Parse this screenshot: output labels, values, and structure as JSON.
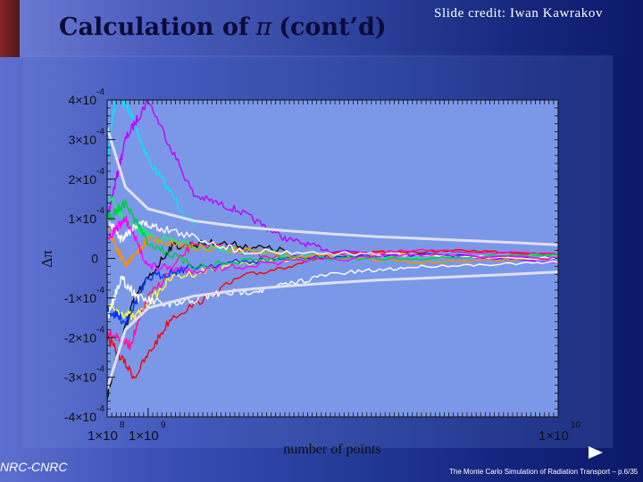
{
  "slide": {
    "title_prefix": "Calculation of",
    "title_symbol": "π",
    "title_suffix": "(cont’d)",
    "credit": "Slide credit: Iwan Kawrakov",
    "footer_left": "NRC-CNRC",
    "footer_right": "The Monte Carlo Simulation of Radiation Transport – p.6/35"
  },
  "colors": {
    "plot_background": "#7b98e8",
    "axis": "#101010",
    "envelope": "#e0e0f2",
    "title": "#0b0b3a"
  },
  "chart_data": {
    "type": "line",
    "xscale": "linear",
    "xlim": [
      100000000,
      10000000000
    ],
    "ylim": [
      -0.0004,
      0.0004
    ],
    "xlabel": "number of points",
    "ylabel": "Δπ",
    "x_ticks": [
      {
        "value": 100000000,
        "mantissa": "1×10",
        "exponent": "8"
      },
      {
        "value": 1000000000,
        "mantissa": "1×10",
        "exponent": "9"
      },
      {
        "value": 10000000000,
        "mantissa": "1×10",
        "exponent": "10"
      }
    ],
    "y_ticks": [
      {
        "value": 0.0004,
        "mantissa": "4×10",
        "exponent": "-4"
      },
      {
        "value": 0.0003,
        "mantissa": "3×10",
        "exponent": "-4"
      },
      {
        "value": 0.0002,
        "mantissa": "2×10",
        "exponent": "-4"
      },
      {
        "value": 0.0001,
        "mantissa": "1×10",
        "exponent": "-4"
      },
      {
        "value": 0,
        "mantissa": "0",
        "exponent": ""
      },
      {
        "value": -0.0001,
        "mantissa": "-1×10",
        "exponent": "-4"
      },
      {
        "value": -0.0002,
        "mantissa": "-2×10",
        "exponent": "-4"
      },
      {
        "value": -0.0003,
        "mantissa": "-3×10",
        "exponent": "-4"
      },
      {
        "value": -0.0004,
        "mantissa": "-4×10",
        "exponent": "-4"
      }
    ],
    "envelope": {
      "x": [
        100000000,
        500000000,
        1000000000,
        2000000000,
        3000000000,
        4000000000,
        5000000000,
        6000000000,
        7000000000,
        8000000000,
        9000000000,
        10000000000
      ],
      "upper": [
        0.00033,
        0.00018,
        0.000125,
        9.5e-05,
        8e-05,
        7e-05,
        6.2e-05,
        5.5e-05,
        5e-05,
        4.5e-05,
        4e-05,
        3.4e-05
      ],
      "lower": [
        -0.00033,
        -0.00018,
        -0.000125,
        -9.5e-05,
        -8e-05,
        -7e-05,
        -6.2e-05,
        -5.5e-05,
        -5e-05,
        -4.5e-05,
        -4e-05,
        -3.4e-05
      ]
    },
    "series": [
      {
        "color": "#00e5ff",
        "x": [
          100000000,
          300000000,
          600000000,
          1000000000,
          2000000000
        ],
        "values": [
          0.00025,
          0.00042,
          0.00037,
          0.00025,
          8e-05
        ]
      },
      {
        "color": "#c000ff",
        "x": [
          100000000,
          500000000,
          1000000000,
          2000000000,
          3000000000,
          4000000000,
          5000000000,
          7000000000,
          10000000000
        ],
        "values": [
          0.0001,
          0.0003,
          0.0004,
          0.00016,
          0.00012,
          5e-05,
          2e-05,
          1e-05,
          -1e-05
        ]
      },
      {
        "color": "#ff0000",
        "x": [
          100000000,
          700000000,
          1500000000,
          3000000000,
          5000000000,
          8000000000,
          10000000000
        ],
        "values": [
          -0.0002,
          -0.0003,
          -0.00015,
          -5e-05,
          1e-05,
          2e-05,
          1e-05
        ]
      },
      {
        "color": "#101010",
        "x": [
          100000000,
          300000000,
          700000000,
          1500000000,
          2500000000,
          4000000000
        ],
        "values": [
          -0.00035,
          -0.00025,
          -0.0001,
          3e-05,
          4e-05,
          2e-05
        ]
      },
      {
        "color": "#ffff33",
        "x": [
          100000000,
          700000000,
          1500000000,
          3000000000,
          6000000000,
          10000000000
        ],
        "values": [
          -0.00012,
          -0.00015,
          -5e-05,
          -1e-05,
          1e-05,
          0.0
        ]
      },
      {
        "color": "#ff1493",
        "x": [
          100000000,
          600000000,
          1000000000,
          2000000000,
          4000000000,
          7000000000,
          10000000000
        ],
        "values": [
          -0.00018,
          -0.00022,
          -0.0001,
          4e-05,
          0.0,
          2e-05,
          1e-05
        ]
      },
      {
        "color": "#00ff66",
        "x": [
          100000000,
          500000000,
          1000000000,
          2000000000,
          4000000000,
          7000000000,
          10000000000
        ],
        "values": [
          0.00017,
          9e-05,
          6e-05,
          3e-05,
          1e-05,
          0.0,
          1e-05
        ]
      },
      {
        "color": "#0030ff",
        "x": [
          100000000,
          500000000,
          1000000000,
          2000000000,
          4000000000,
          7000000000,
          10000000000
        ],
        "values": [
          -0.00013,
          -0.00016,
          -5e-05,
          -2e-05,
          0.0,
          1e-05,
          0.0
        ]
      },
      {
        "color": "#ff8c00",
        "x": [
          100000000,
          500000000,
          1000000000,
          2000000000,
          4000000000,
          7000000000,
          10000000000
        ],
        "values": [
          8e-05,
          -2e-05,
          5e-05,
          3e-05,
          1e-05,
          -1e-05,
          0.0
        ]
      },
      {
        "color": "#ffffff",
        "x": [
          100000000,
          400000000,
          800000000,
          1500000000,
          2500000000,
          3500000000,
          5000000000,
          7000000000,
          10000000000
        ],
        "values": [
          -0.00015,
          -5e-05,
          -0.0001,
          -0.00012,
          -9e-05,
          -8e-05,
          -4e-05,
          -2e-05,
          -1e-05
        ]
      },
      {
        "color": "#ffffff",
        "x": [
          100000000,
          400000000,
          800000000,
          1500000000,
          3000000000,
          6000000000,
          10000000000
        ],
        "values": [
          0.0001,
          5e-05,
          9e-05,
          7e-05,
          2e-05,
          1e-05,
          0.0
        ]
      },
      {
        "color": "#00cc44",
        "x": [
          100000000,
          500000000,
          1000000000,
          2000000000,
          4000000000,
          7000000000,
          10000000000
        ],
        "values": [
          0.0001,
          0.00014,
          4e-05,
          -2e-05,
          0.0,
          0.0,
          1e-05
        ]
      },
      {
        "color": "#ff00ff",
        "x": [
          100000000,
          500000000,
          1000000000,
          2000000000,
          4000000000,
          7000000000,
          10000000000
        ],
        "values": [
          5e-05,
          0.0001,
          -2e-05,
          -3e-05,
          -1e-05,
          1e-05,
          0.0
        ]
      }
    ]
  }
}
